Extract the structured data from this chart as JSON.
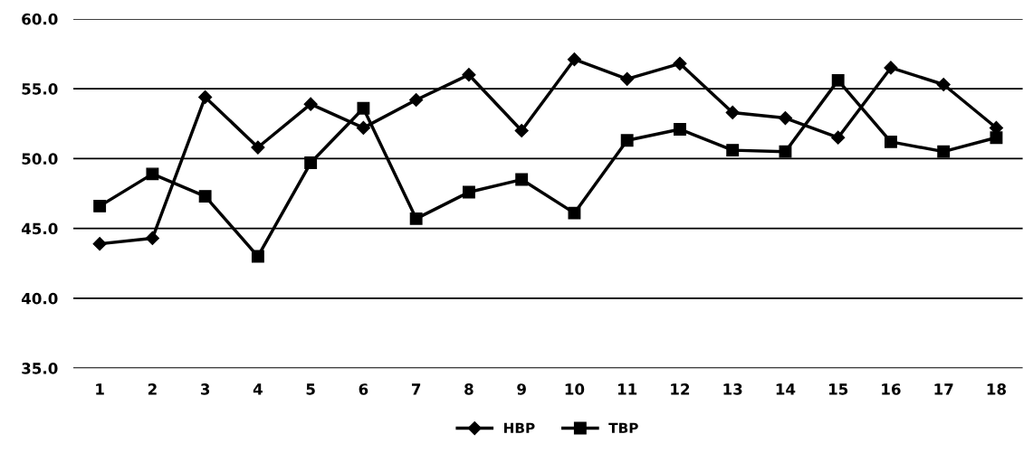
{
  "chart_data": {
    "type": "line",
    "categories": [
      "1",
      "2",
      "3",
      "4",
      "5",
      "6",
      "7",
      "8",
      "9",
      "10",
      "11",
      "12",
      "13",
      "14",
      "15",
      "16",
      "17",
      "18"
    ],
    "series": [
      {
        "name": "HBP",
        "color": "#000000",
        "marker": "diamond",
        "values": [
          43.9,
          44.3,
          54.4,
          50.8,
          53.9,
          52.2,
          54.2,
          56.0,
          52.0,
          57.1,
          55.7,
          56.8,
          53.3,
          52.9,
          51.5,
          56.5,
          55.3,
          52.2
        ]
      },
      {
        "name": "TBP",
        "color": "#000000",
        "marker": "square",
        "values": [
          46.6,
          48.9,
          47.3,
          43.0,
          49.7,
          53.6,
          45.7,
          47.6,
          48.5,
          46.1,
          51.3,
          52.1,
          50.6,
          50.5,
          55.6,
          51.2,
          50.5,
          51.5
        ]
      }
    ],
    "ylim": [
      35,
      60
    ],
    "yticks": [
      {
        "value": 35,
        "label": "35.0"
      },
      {
        "value": 40,
        "label": "40.0"
      },
      {
        "value": 45,
        "label": "45.0"
      },
      {
        "value": 50,
        "label": "50.0"
      },
      {
        "value": 55,
        "label": "55.0"
      },
      {
        "value": 60,
        "label": "60.0"
      }
    ],
    "grid": "y",
    "legend": "bottom",
    "line_style": "solid"
  }
}
